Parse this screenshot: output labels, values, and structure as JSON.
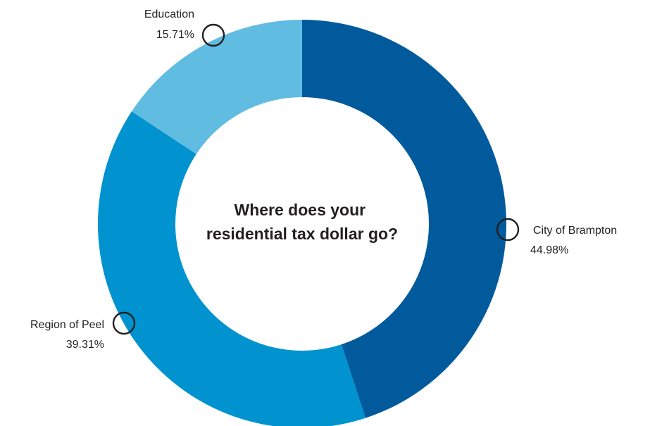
{
  "chart_data": {
    "type": "pie",
    "donut": true,
    "title": "Where does your residential tax dollar go?",
    "title_lines": [
      "Where does your",
      "residential tax dollar go?"
    ],
    "categories": [
      "City of Brampton",
      "Region of Peel",
      "Education"
    ],
    "values": [
      44.98,
      39.31,
      15.71
    ],
    "value_labels": [
      "44.98%",
      "39.31%",
      "15.71%"
    ],
    "unit": "%",
    "colors": [
      "#005a9c",
      "#0093d0",
      "#61bce2"
    ],
    "label_marker": "circle-outline"
  }
}
